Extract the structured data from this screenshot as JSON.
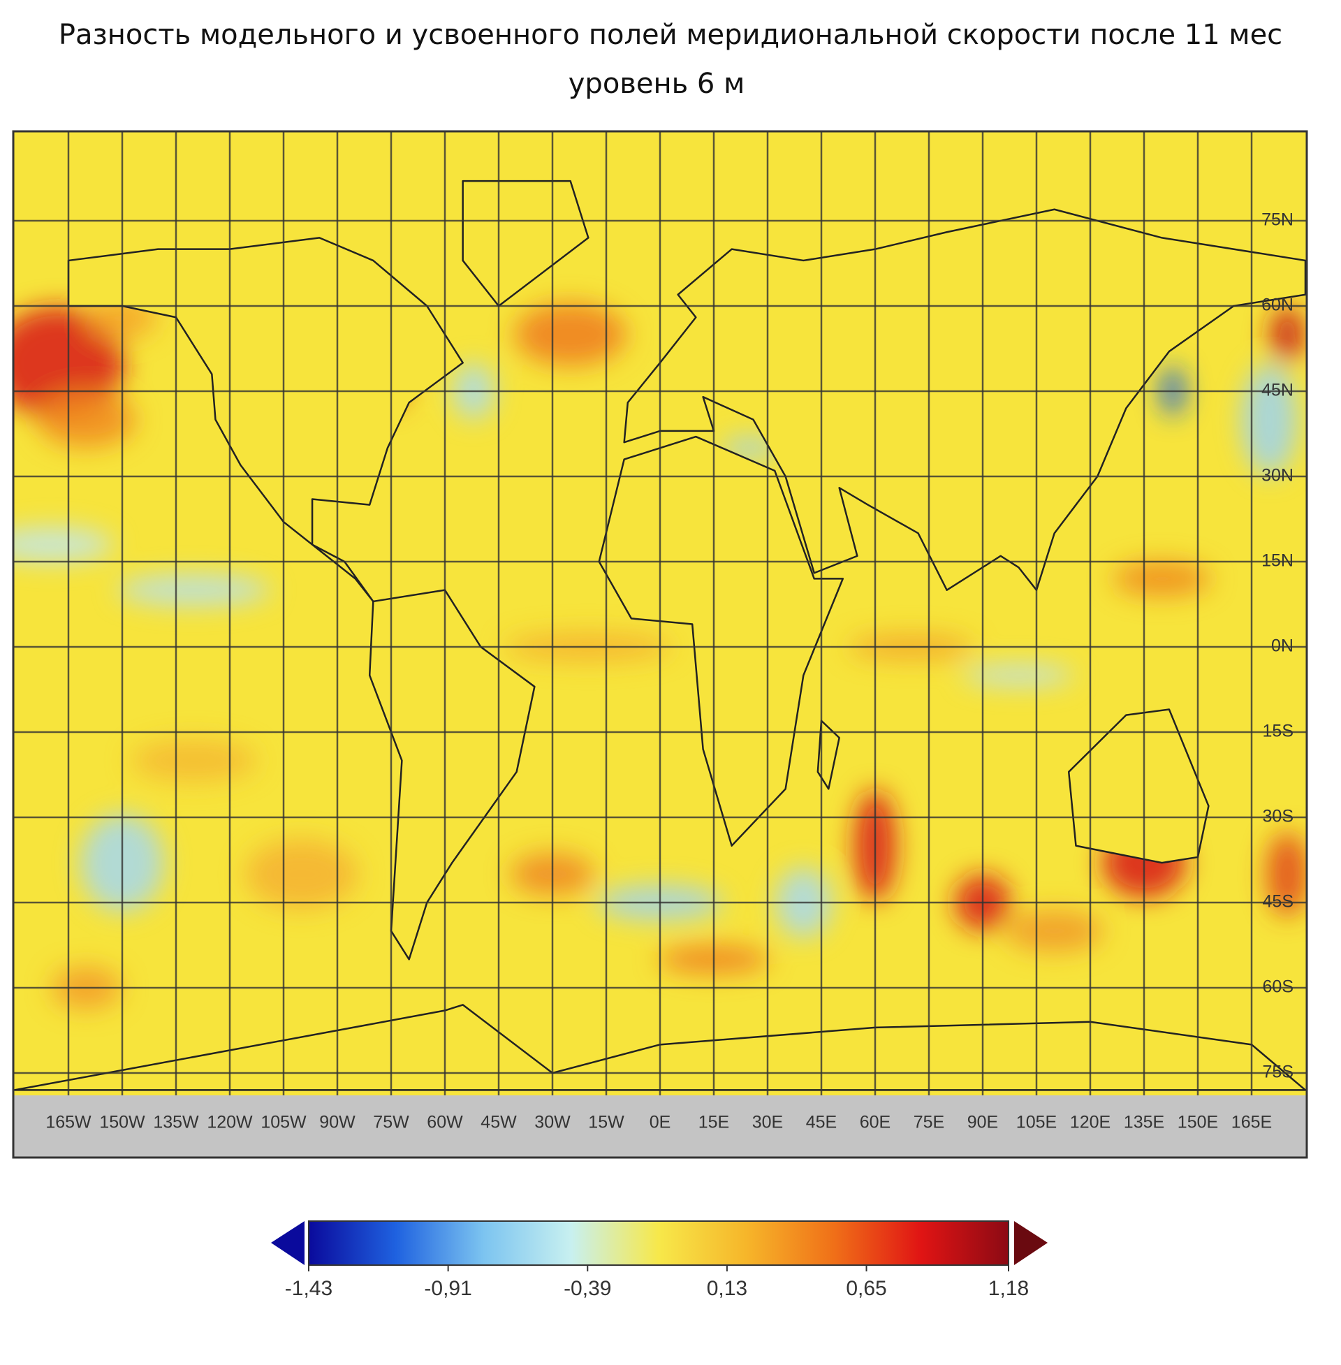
{
  "title": "Разность модельного и усвоенного полей меридиональной скорости после 11 мес",
  "subtitle": "уровень 6 м",
  "map": {
    "lat_labels": [
      "75N",
      "60N",
      "45N",
      "30N",
      "15N",
      "0N",
      "15S",
      "30S",
      "45S",
      "60S",
      "75S"
    ],
    "lon_labels": [
      "165W",
      "150W",
      "135W",
      "120W",
      "105W",
      "90W",
      "75W",
      "60W",
      "45W",
      "30W",
      "15W",
      "0E",
      "15E",
      "30E",
      "45E",
      "60E",
      "75E",
      "90E",
      "105E",
      "120E",
      "135E",
      "150E",
      "165E"
    ]
  },
  "colorbar": {
    "lim": [
      -1.43,
      1.18
    ],
    "colors": [
      "#0a0a9c",
      "#1f62e0",
      "#7cc4f0",
      "#c8f0f0",
      "#f7e84a",
      "#f6b62a",
      "#f07018",
      "#e01414",
      "#8c0a14"
    ],
    "ticks": [
      {
        "value": -1.43,
        "label": "-1,43"
      },
      {
        "value": -0.91,
        "label": "-0,91"
      },
      {
        "value": -0.39,
        "label": "-0,39"
      },
      {
        "value": 0.13,
        "label": "0,13"
      },
      {
        "value": 0.65,
        "label": "0,65"
      },
      {
        "value": 1.18,
        "label": "1,18"
      }
    ]
  }
}
